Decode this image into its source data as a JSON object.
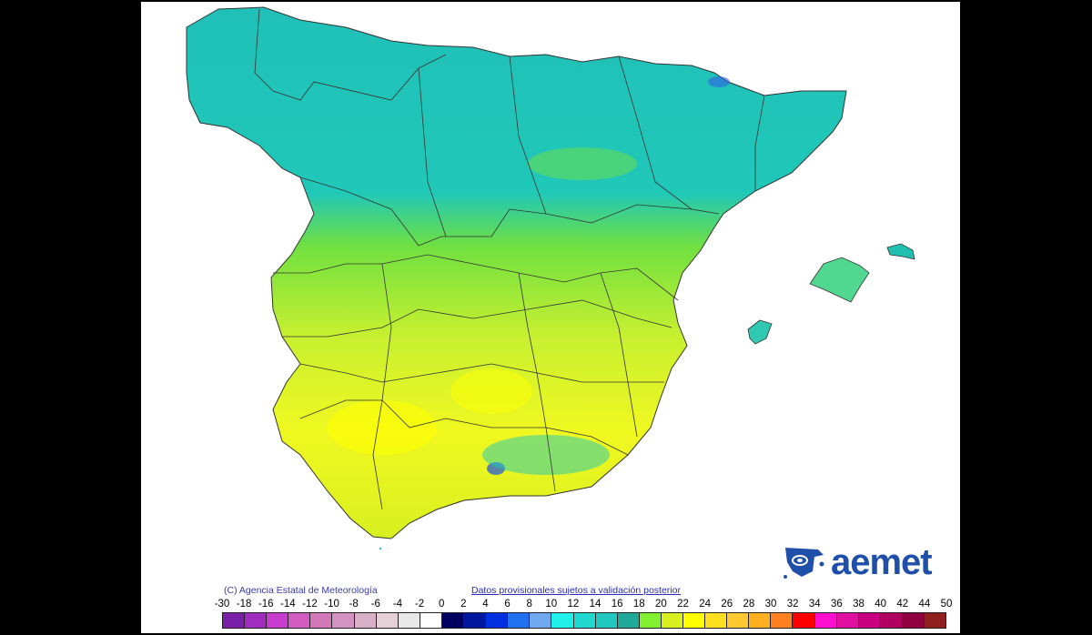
{
  "credit": "(C) Agencia Estatal de Meteorología",
  "notice_link": "Datos provisionales sujetos a validación posterior",
  "logo": {
    "text": "aemet",
    "color": "#1f4fa8",
    "icon": "aemet-swirl-logo-icon"
  },
  "legend": {
    "ticks": [
      "-30",
      "-18",
      "-16",
      "-14",
      "-12",
      "-10",
      "-8",
      "-6",
      "-4",
      "-2",
      "0",
      "2",
      "4",
      "6",
      "8",
      "10",
      "12",
      "14",
      "16",
      "18",
      "20",
      "22",
      "24",
      "26",
      "28",
      "30",
      "32",
      "34",
      "36",
      "38",
      "40",
      "42",
      "44",
      "50"
    ],
    "colors": [
      "#7a1fa8",
      "#a02cc0",
      "#c83cd0",
      "#d25cc0",
      "#d278b8",
      "#d392c2",
      "#d8b0c8",
      "#e6d0d8",
      "#e8e8e8",
      "#ffffff",
      "#000060",
      "#0018a0",
      "#0030e0",
      "#2070f0",
      "#70a8f0",
      "#20f0e8",
      "#20d8d0",
      "#20c8c0",
      "#20a898",
      "#80f030",
      "#d8f020",
      "#ffff00",
      "#ffe020",
      "#ffc830",
      "#ffb020",
      "#ff8020",
      "#ff0000",
      "#ff10d0",
      "#e010a0",
      "#c80080",
      "#b00060",
      "#900040",
      "#902020"
    ]
  },
  "map": {
    "region": "Spain peninsula and Balearic Islands",
    "colors": {
      "north": "#20c0b8",
      "center": "#70e040",
      "south": "#e8f020"
    }
  }
}
